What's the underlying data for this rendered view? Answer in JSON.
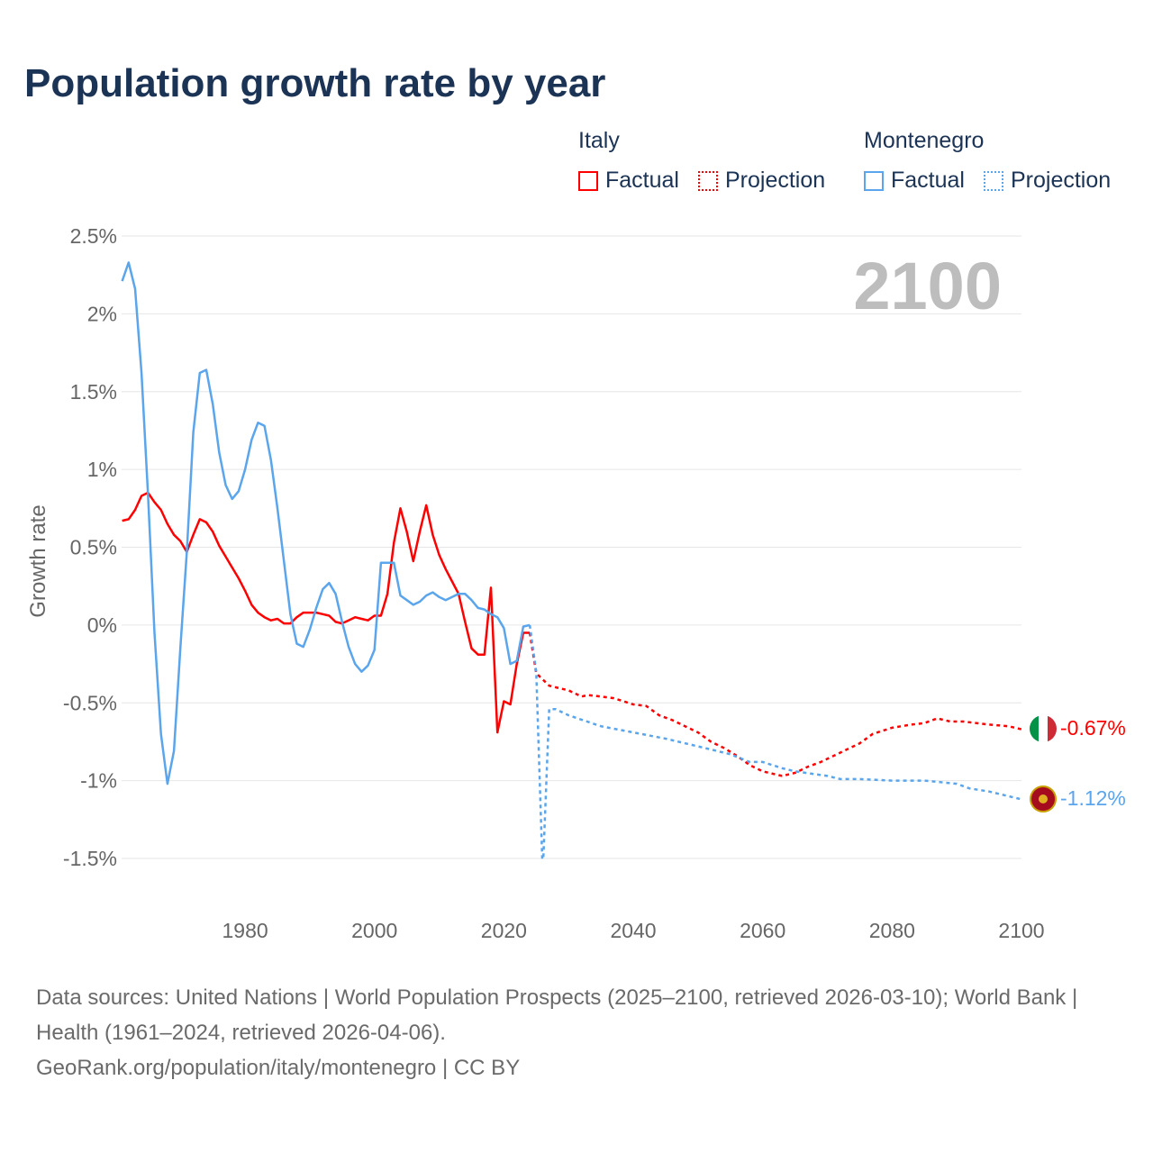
{
  "title": "Population growth rate by year",
  "legend": {
    "groups": [
      {
        "name": "Italy",
        "color": "#ff0000",
        "factual": "Factual",
        "projection": "Projection"
      },
      {
        "name": "Montenegro",
        "color": "#5aa5ec",
        "factual": "Factual",
        "projection": "Projection"
      }
    ]
  },
  "year_overlay": "2100",
  "footer": {
    "line1": "Data sources: United Nations | World Population Prospects (2025–2100, retrieved 2026-03-10); World Bank | Health (1961–2024, retrieved 2026-04-06).",
    "line2": "GeoRank.org/population/italy/montenegro | CC BY"
  },
  "chart_data": {
    "type": "line",
    "title": "Population growth rate by year",
    "xlabel": "",
    "ylabel": "Growth rate",
    "xlim": [
      1961,
      2100
    ],
    "ylim": [
      -1.5,
      2.5
    ],
    "xticks": [
      1980,
      2000,
      2020,
      2040,
      2060,
      2080,
      2100
    ],
    "yticks": [
      2.5,
      2,
      1.5,
      1,
      0.5,
      0,
      -0.5,
      -1,
      -1.5
    ],
    "ytick_labels": [
      "2.5%",
      "2%",
      "1.5%",
      "1%",
      "0.5%",
      "0%",
      "-0.5%",
      "-1%",
      "-1.5%"
    ],
    "grid": true,
    "legend_position": "top-right",
    "series": [
      {
        "name": "Italy",
        "color": "#ff0000",
        "end_label": "-0.67%",
        "factual": [
          [
            1961,
            0.67
          ],
          [
            1962,
            0.68
          ],
          [
            1963,
            0.74
          ],
          [
            1964,
            0.83
          ],
          [
            1965,
            0.85
          ],
          [
            1966,
            0.79
          ],
          [
            1967,
            0.74
          ],
          [
            1968,
            0.65
          ],
          [
            1969,
            0.58
          ],
          [
            1970,
            0.54
          ],
          [
            1971,
            0.47
          ],
          [
            1972,
            0.58
          ],
          [
            1973,
            0.68
          ],
          [
            1974,
            0.66
          ],
          [
            1975,
            0.6
          ],
          [
            1976,
            0.51
          ],
          [
            1977,
            0.44
          ],
          [
            1978,
            0.37
          ],
          [
            1979,
            0.3
          ],
          [
            1980,
            0.22
          ],
          [
            1981,
            0.13
          ],
          [
            1982,
            0.08
          ],
          [
            1983,
            0.05
          ],
          [
            1984,
            0.03
          ],
          [
            1985,
            0.04
          ],
          [
            1986,
            0.01
          ],
          [
            1987,
            0.01
          ],
          [
            1988,
            0.05
          ],
          [
            1989,
            0.08
          ],
          [
            1990,
            0.08
          ],
          [
            1991,
            0.08
          ],
          [
            1992,
            0.07
          ],
          [
            1993,
            0.06
          ],
          [
            1994,
            0.02
          ],
          [
            1995,
            0.01
          ],
          [
            1996,
            0.03
          ],
          [
            1997,
            0.05
          ],
          [
            1998,
            0.04
          ],
          [
            1999,
            0.03
          ],
          [
            2000,
            0.06
          ],
          [
            2001,
            0.06
          ],
          [
            2002,
            0.2
          ],
          [
            2003,
            0.53
          ],
          [
            2004,
            0.75
          ],
          [
            2005,
            0.6
          ],
          [
            2006,
            0.41
          ],
          [
            2007,
            0.6
          ],
          [
            2008,
            0.77
          ],
          [
            2009,
            0.58
          ],
          [
            2010,
            0.45
          ],
          [
            2011,
            0.36
          ],
          [
            2012,
            0.28
          ],
          [
            2013,
            0.2
          ],
          [
            2014,
            0.02
          ],
          [
            2015,
            -0.15
          ],
          [
            2016,
            -0.19
          ],
          [
            2017,
            -0.19
          ],
          [
            2018,
            0.24
          ],
          [
            2019,
            -0.69
          ],
          [
            2020,
            -0.49
          ],
          [
            2021,
            -0.51
          ],
          [
            2022,
            -0.25
          ],
          [
            2023,
            -0.05
          ],
          [
            2024,
            -0.05
          ]
        ],
        "projection": [
          [
            2024,
            -0.05
          ],
          [
            2025,
            -0.31
          ],
          [
            2027,
            -0.39
          ],
          [
            2028,
            -0.4
          ],
          [
            2030,
            -0.42
          ],
          [
            2032,
            -0.46
          ],
          [
            2033,
            -0.45
          ],
          [
            2035,
            -0.46
          ],
          [
            2037,
            -0.47
          ],
          [
            2040,
            -0.51
          ],
          [
            2042,
            -0.52
          ],
          [
            2044,
            -0.58
          ],
          [
            2046,
            -0.61
          ],
          [
            2048,
            -0.65
          ],
          [
            2050,
            -0.69
          ],
          [
            2052,
            -0.75
          ],
          [
            2054,
            -0.79
          ],
          [
            2056,
            -0.84
          ],
          [
            2058,
            -0.9
          ],
          [
            2060,
            -0.94
          ],
          [
            2062,
            -0.96
          ],
          [
            2063,
            -0.97
          ],
          [
            2065,
            -0.95
          ],
          [
            2067,
            -0.91
          ],
          [
            2069,
            -0.88
          ],
          [
            2072,
            -0.82
          ],
          [
            2075,
            -0.76
          ],
          [
            2077,
            -0.7
          ],
          [
            2080,
            -0.66
          ],
          [
            2083,
            -0.64
          ],
          [
            2085,
            -0.63
          ],
          [
            2087,
            -0.6
          ],
          [
            2089,
            -0.62
          ],
          [
            2091,
            -0.62
          ],
          [
            2093,
            -0.63
          ],
          [
            2095,
            -0.64
          ],
          [
            2098,
            -0.65
          ],
          [
            2100,
            -0.67
          ]
        ]
      },
      {
        "name": "Montenegro",
        "color": "#5aa5ec",
        "end_label": "-1.12%",
        "factual": [
          [
            1961,
            2.21
          ],
          [
            1962,
            2.33
          ],
          [
            1963,
            2.16
          ],
          [
            1964,
            1.62
          ],
          [
            1965,
            0.84
          ],
          [
            1966,
            -0.05
          ],
          [
            1967,
            -0.7
          ],
          [
            1968,
            -1.02
          ],
          [
            1969,
            -0.81
          ],
          [
            1970,
            -0.15
          ],
          [
            1971,
            0.47
          ],
          [
            1972,
            1.24
          ],
          [
            1973,
            1.62
          ],
          [
            1974,
            1.64
          ],
          [
            1975,
            1.42
          ],
          [
            1976,
            1.11
          ],
          [
            1977,
            0.9
          ],
          [
            1978,
            0.81
          ],
          [
            1979,
            0.86
          ],
          [
            1980,
            1.0
          ],
          [
            1981,
            1.19
          ],
          [
            1982,
            1.3
          ],
          [
            1983,
            1.28
          ],
          [
            1984,
            1.06
          ],
          [
            1985,
            0.75
          ],
          [
            1986,
            0.41
          ],
          [
            1987,
            0.07
          ],
          [
            1988,
            -0.12
          ],
          [
            1989,
            -0.14
          ],
          [
            1990,
            -0.03
          ],
          [
            1991,
            0.11
          ],
          [
            1992,
            0.23
          ],
          [
            1993,
            0.27
          ],
          [
            1994,
            0.2
          ],
          [
            1995,
            0.02
          ],
          [
            1996,
            -0.14
          ],
          [
            1997,
            -0.25
          ],
          [
            1998,
            -0.3
          ],
          [
            1999,
            -0.26
          ],
          [
            2000,
            -0.16
          ],
          [
            2001,
            0.4
          ],
          [
            2002,
            0.4
          ],
          [
            2003,
            0.4
          ],
          [
            2004,
            0.19
          ],
          [
            2005,
            0.16
          ],
          [
            2006,
            0.13
          ],
          [
            2007,
            0.15
          ],
          [
            2008,
            0.19
          ],
          [
            2009,
            0.21
          ],
          [
            2010,
            0.18
          ],
          [
            2011,
            0.16
          ],
          [
            2012,
            0.18
          ],
          [
            2013,
            0.2
          ],
          [
            2014,
            0.2
          ],
          [
            2015,
            0.16
          ],
          [
            2016,
            0.11
          ],
          [
            2017,
            0.1
          ],
          [
            2018,
            0.07
          ],
          [
            2019,
            0.05
          ],
          [
            2020,
            -0.02
          ],
          [
            2021,
            -0.25
          ],
          [
            2022,
            -0.23
          ],
          [
            2023,
            -0.01
          ],
          [
            2024,
            0.0
          ]
        ],
        "projection": [
          [
            2024,
            0.0
          ],
          [
            2025,
            -0.3
          ],
          [
            2026,
            -1.6
          ],
          [
            2027,
            -0.54
          ],
          [
            2028,
            -0.54
          ],
          [
            2030,
            -0.58
          ],
          [
            2035,
            -0.65
          ],
          [
            2040,
            -0.69
          ],
          [
            2045,
            -0.73
          ],
          [
            2050,
            -0.78
          ],
          [
            2055,
            -0.83
          ],
          [
            2058,
            -0.88
          ],
          [
            2060,
            -0.88
          ],
          [
            2063,
            -0.92
          ],
          [
            2065,
            -0.94
          ],
          [
            2070,
            -0.97
          ],
          [
            2072,
            -0.99
          ],
          [
            2075,
            -0.99
          ],
          [
            2080,
            -1.0
          ],
          [
            2085,
            -1.0
          ],
          [
            2090,
            -1.02
          ],
          [
            2092,
            -1.05
          ],
          [
            2095,
            -1.07
          ],
          [
            2098,
            -1.1
          ],
          [
            2100,
            -1.12
          ]
        ]
      }
    ]
  }
}
